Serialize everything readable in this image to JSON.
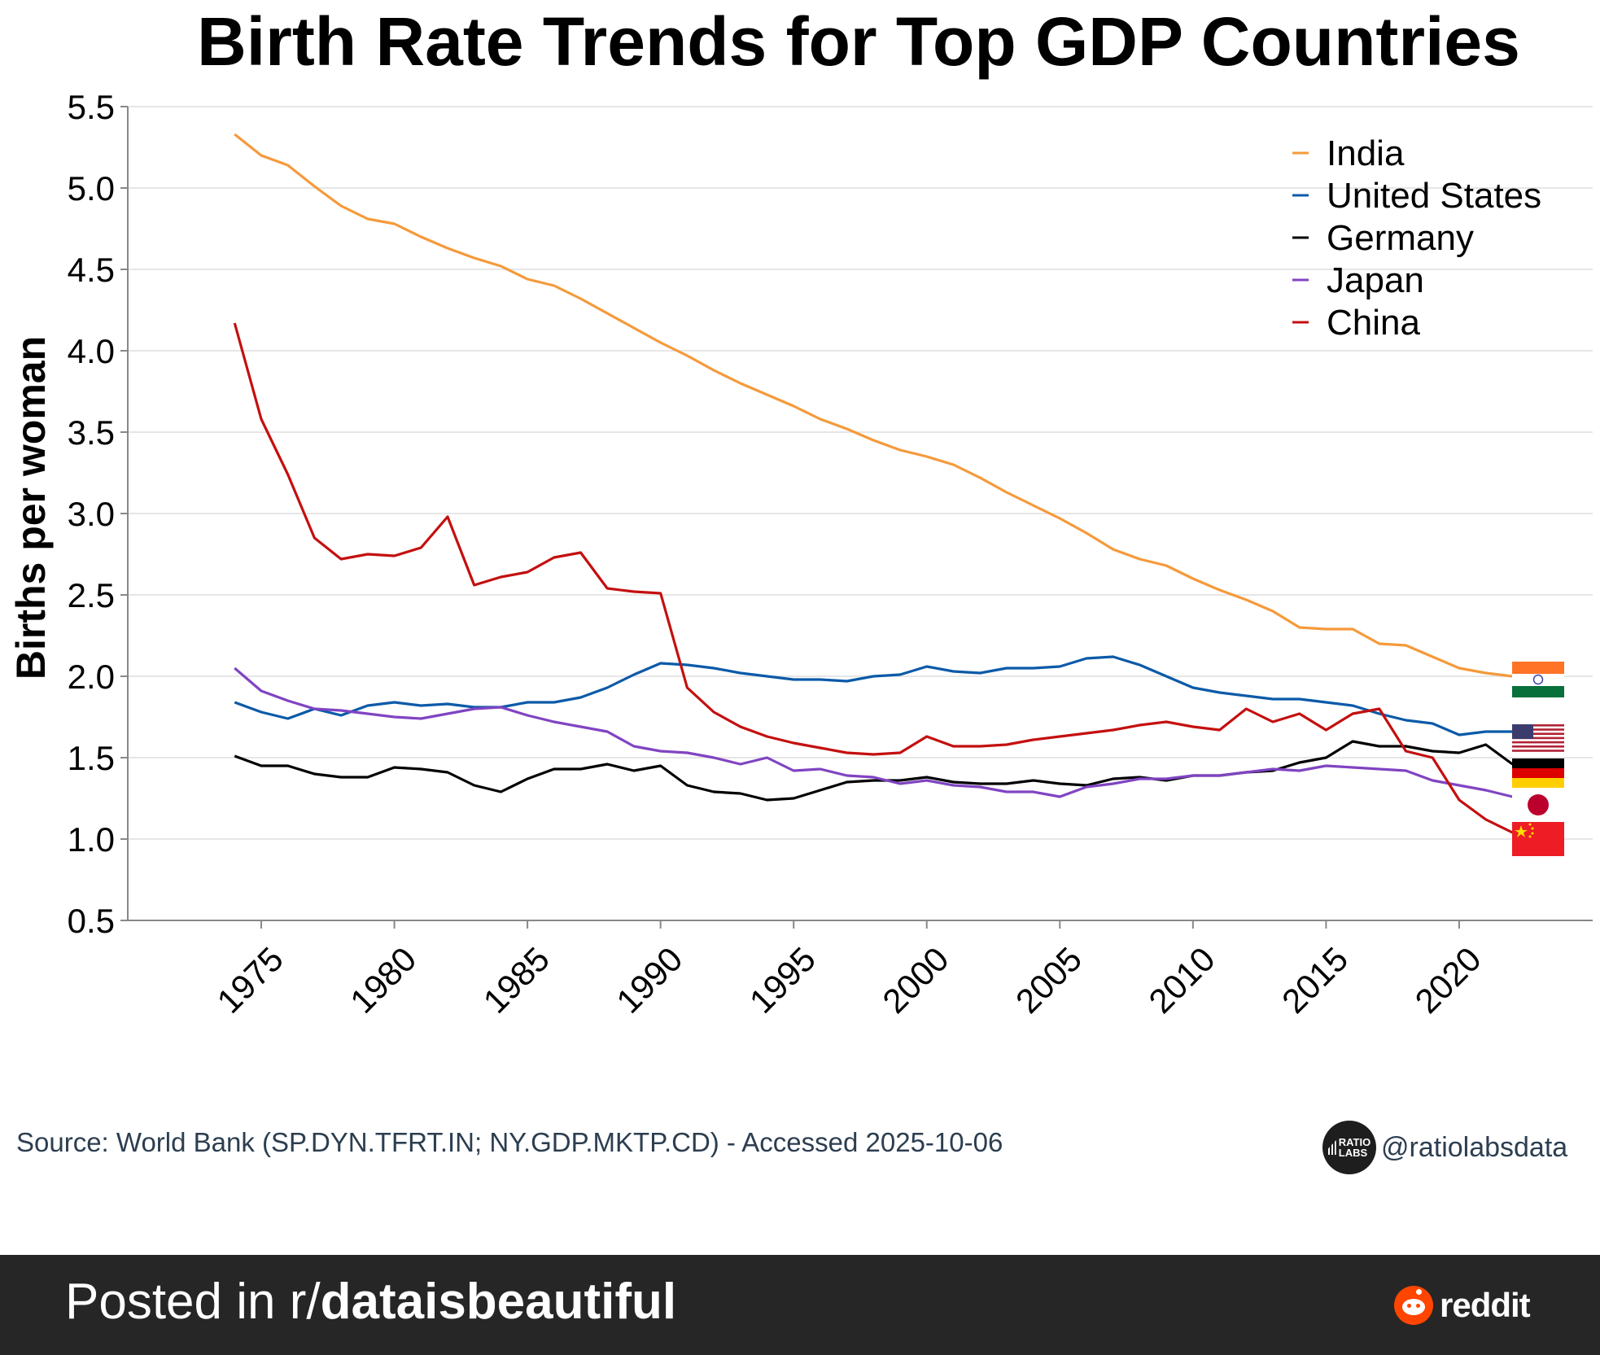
{
  "chart_data": {
    "type": "line",
    "title": "Birth Rate Trends for Top GDP Countries",
    "xlabel": "",
    "ylabel": "Births per woman",
    "ylim": [
      0.5,
      5.5
    ],
    "xlim": [
      1971,
      2025
    ],
    "yticks": [
      "0.5",
      "1.0",
      "1.5",
      "2.0",
      "2.5",
      "3.0",
      "3.5",
      "4.0",
      "4.5",
      "5.0",
      "5.5"
    ],
    "xticks": [
      "1975",
      "1980",
      "1985",
      "1990",
      "1995",
      "2000",
      "2005",
      "2010",
      "2015",
      "2020"
    ],
    "grid": "horizontal",
    "legend_position": "top-right",
    "x": [
      1974,
      1975,
      1976,
      1977,
      1978,
      1979,
      1980,
      1981,
      1982,
      1983,
      1984,
      1985,
      1986,
      1987,
      1988,
      1989,
      1990,
      1991,
      1992,
      1993,
      1994,
      1995,
      1996,
      1997,
      1998,
      1999,
      2000,
      2001,
      2002,
      2003,
      2004,
      2005,
      2006,
      2007,
      2008,
      2009,
      2010,
      2011,
      2012,
      2013,
      2014,
      2015,
      2016,
      2017,
      2018,
      2019,
      2020,
      2021,
      2022
    ],
    "series": [
      {
        "name": "India",
        "color": "#f59a3b",
        "flag": "india-flag",
        "values": [
          5.33,
          5.2,
          5.14,
          5.01,
          4.89,
          4.81,
          4.78,
          4.7,
          4.63,
          4.57,
          4.52,
          4.44,
          4.4,
          4.32,
          4.23,
          4.14,
          4.05,
          3.97,
          3.88,
          3.8,
          3.73,
          3.66,
          3.58,
          3.52,
          3.45,
          3.39,
          3.35,
          3.3,
          3.22,
          3.13,
          3.05,
          2.97,
          2.88,
          2.78,
          2.72,
          2.68,
          2.6,
          2.53,
          2.47,
          2.4,
          2.3,
          2.29,
          2.29,
          2.2,
          2.19,
          2.12,
          2.05,
          2.02,
          2.0
        ]
      },
      {
        "name": "United States",
        "color": "#0b5aa8",
        "flag": "usa-flag",
        "values": [
          1.84,
          1.78,
          1.74,
          1.8,
          1.76,
          1.82,
          1.84,
          1.82,
          1.83,
          1.81,
          1.81,
          1.84,
          1.84,
          1.87,
          1.93,
          2.01,
          2.08,
          2.07,
          2.05,
          2.02,
          2.0,
          1.98,
          1.98,
          1.97,
          2.0,
          2.01,
          2.06,
          2.03,
          2.02,
          2.05,
          2.05,
          2.06,
          2.11,
          2.12,
          2.07,
          2.0,
          1.93,
          1.9,
          1.88,
          1.86,
          1.86,
          1.84,
          1.82,
          1.77,
          1.73,
          1.71,
          1.64,
          1.66,
          1.66
        ]
      },
      {
        "name": "Germany",
        "color": "#000000",
        "flag": "germany-flag",
        "values": [
          1.51,
          1.45,
          1.45,
          1.4,
          1.38,
          1.38,
          1.44,
          1.43,
          1.41,
          1.33,
          1.29,
          1.37,
          1.43,
          1.43,
          1.46,
          1.42,
          1.45,
          1.33,
          1.29,
          1.28,
          1.24,
          1.25,
          1.3,
          1.35,
          1.36,
          1.36,
          1.38,
          1.35,
          1.34,
          1.34,
          1.36,
          1.34,
          1.33,
          1.37,
          1.38,
          1.36,
          1.39,
          1.39,
          1.41,
          1.42,
          1.47,
          1.5,
          1.6,
          1.57,
          1.57,
          1.54,
          1.53,
          1.58,
          1.46
        ]
      },
      {
        "name": "Japan",
        "color": "#8044c2",
        "flag": "japan-flag",
        "values": [
          2.05,
          1.91,
          1.85,
          1.8,
          1.79,
          1.77,
          1.75,
          1.74,
          1.77,
          1.8,
          1.81,
          1.76,
          1.72,
          1.69,
          1.66,
          1.57,
          1.54,
          1.53,
          1.5,
          1.46,
          1.5,
          1.42,
          1.43,
          1.39,
          1.38,
          1.34,
          1.36,
          1.33,
          1.32,
          1.29,
          1.29,
          1.26,
          1.32,
          1.34,
          1.37,
          1.37,
          1.39,
          1.39,
          1.41,
          1.43,
          1.42,
          1.45,
          1.44,
          1.43,
          1.42,
          1.36,
          1.33,
          1.3,
          1.26
        ]
      },
      {
        "name": "China",
        "color": "#c40f0f",
        "flag": "china-flag",
        "values": [
          4.17,
          3.58,
          3.24,
          2.85,
          2.72,
          2.75,
          2.74,
          2.79,
          2.98,
          2.56,
          2.61,
          2.64,
          2.73,
          2.76,
          2.54,
          2.52,
          2.51,
          1.93,
          1.78,
          1.69,
          1.63,
          1.59,
          1.56,
          1.53,
          1.52,
          1.53,
          1.63,
          1.57,
          1.57,
          1.58,
          1.61,
          1.63,
          1.65,
          1.67,
          1.7,
          1.72,
          1.69,
          1.67,
          1.8,
          1.72,
          1.77,
          1.67,
          1.77,
          1.8,
          1.54,
          1.5,
          1.24,
          1.12,
          1.04
        ]
      }
    ]
  },
  "source": "Source: World Bank (SP.DYN.TFRT.IN; NY.GDP.MKTP.CD) - Accessed 2025-10-06",
  "brand": {
    "logo_line1": "RATIO",
    "logo_line2": "LABS",
    "handle": "@ratiolabsdata"
  },
  "footer": {
    "prefix": "Posted in r/",
    "subreddit": "dataisbeautiful",
    "site": "reddit"
  }
}
